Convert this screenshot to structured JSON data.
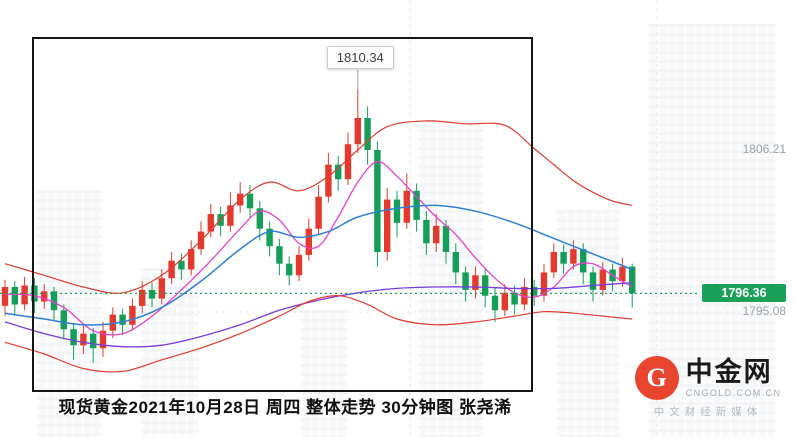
{
  "page": {
    "caption": "现货黄金2021年10月28日 周四  整体走势  30分钟图  张尧浠"
  },
  "branding": {
    "site_name": "中金网",
    "site_domain": "CNGOLD.COM.CN",
    "tagline": "中文财经新媒体",
    "logo_letter": "G",
    "logo_color": "#e8442e"
  },
  "chart_data": {
    "type": "candlestick",
    "title": "现货黄金 2021年10月28日 周四 30分钟图",
    "ylim": [
      1786.5,
      1816.5
    ],
    "grid": false,
    "legend": false,
    "colors": {
      "up": "#e23b2e",
      "down": "#149e58",
      "current": "#1ba157",
      "band": "#e23b2e",
      "ma_fast": "#e840ce",
      "ma_mid": "#2f7fd6",
      "ma_slow": "#7a3bdc"
    },
    "annotations": {
      "peak_label": "1810.34",
      "peak_index": 36,
      "current_price": "1796.36",
      "current_price_value": 1796.36,
      "axis_labels_right": [
        {
          "text": "1806.21",
          "price": 1806.21
        },
        {
          "text": "1795.08",
          "price": 1795.08
        }
      ]
    },
    "candles": [
      [
        1795.5,
        1797.3,
        1794.8,
        1796.8
      ],
      [
        1796.8,
        1797.2,
        1794.9,
        1795.6
      ],
      [
        1795.6,
        1797.5,
        1795.2,
        1796.9
      ],
      [
        1796.9,
        1797.4,
        1795.0,
        1795.8
      ],
      [
        1795.8,
        1797.0,
        1795.3,
        1796.5
      ],
      [
        1796.5,
        1796.8,
        1794.5,
        1795.2
      ],
      [
        1795.2,
        1795.6,
        1793.2,
        1793.9
      ],
      [
        1793.9,
        1794.3,
        1791.8,
        1792.8
      ],
      [
        1792.8,
        1794.2,
        1792.2,
        1793.6
      ],
      [
        1793.6,
        1794.0,
        1791.6,
        1792.6
      ],
      [
        1792.6,
        1794.4,
        1792.0,
        1793.8
      ],
      [
        1793.8,
        1795.4,
        1793.3,
        1794.9
      ],
      [
        1794.9,
        1795.3,
        1793.5,
        1794.2
      ],
      [
        1794.2,
        1796.0,
        1793.8,
        1795.5
      ],
      [
        1795.5,
        1797.2,
        1795.0,
        1796.6
      ],
      [
        1796.6,
        1797.1,
        1795.4,
        1796.0
      ],
      [
        1796.0,
        1798.0,
        1795.6,
        1797.4
      ],
      [
        1797.4,
        1799.2,
        1797.0,
        1798.6
      ],
      [
        1798.6,
        1799.1,
        1797.3,
        1798.0
      ],
      [
        1798.0,
        1800.0,
        1797.6,
        1799.4
      ],
      [
        1799.4,
        1801.3,
        1799.0,
        1800.6
      ],
      [
        1800.6,
        1802.5,
        1800.2,
        1801.8
      ],
      [
        1801.8,
        1802.3,
        1800.3,
        1801.0
      ],
      [
        1801.0,
        1803.3,
        1800.6,
        1802.4
      ],
      [
        1802.4,
        1804.0,
        1801.9,
        1803.2
      ],
      [
        1803.2,
        1803.8,
        1801.5,
        1802.2
      ],
      [
        1802.2,
        1802.7,
        1800.0,
        1800.8
      ],
      [
        1800.8,
        1801.3,
        1798.9,
        1799.6
      ],
      [
        1799.6,
        1800.1,
        1797.6,
        1798.4
      ],
      [
        1798.4,
        1798.9,
        1796.9,
        1797.6
      ],
      [
        1797.6,
        1799.6,
        1797.2,
        1799.0
      ],
      [
        1799.0,
        1801.5,
        1798.6,
        1800.8
      ],
      [
        1800.8,
        1803.8,
        1800.4,
        1803.0
      ],
      [
        1803.0,
        1806.0,
        1802.6,
        1805.2
      ],
      [
        1805.2,
        1805.8,
        1803.4,
        1804.2
      ],
      [
        1804.2,
        1807.4,
        1803.8,
        1806.6
      ],
      [
        1806.6,
        1810.34,
        1806.0,
        1808.4
      ],
      [
        1808.4,
        1809.2,
        1805.2,
        1806.2
      ],
      [
        1806.2,
        1806.8,
        1798.2,
        1799.2
      ],
      [
        1799.2,
        1803.6,
        1798.6,
        1802.8
      ],
      [
        1802.8,
        1803.4,
        1800.2,
        1801.2
      ],
      [
        1801.2,
        1804.6,
        1800.8,
        1803.4
      ],
      [
        1803.4,
        1803.9,
        1800.6,
        1801.4
      ],
      [
        1801.4,
        1802.0,
        1799.0,
        1799.8
      ],
      [
        1799.8,
        1801.8,
        1799.2,
        1801.0
      ],
      [
        1801.0,
        1801.4,
        1798.4,
        1799.2
      ],
      [
        1799.2,
        1799.8,
        1797.0,
        1797.8
      ],
      [
        1797.8,
        1798.2,
        1795.8,
        1796.6
      ],
      [
        1796.6,
        1798.2,
        1796.0,
        1797.6
      ],
      [
        1797.6,
        1798.0,
        1795.4,
        1796.2
      ],
      [
        1796.2,
        1796.8,
        1794.4,
        1795.2
      ],
      [
        1795.2,
        1797.0,
        1794.8,
        1796.4
      ],
      [
        1796.4,
        1796.9,
        1794.9,
        1795.6
      ],
      [
        1795.6,
        1797.4,
        1795.2,
        1796.8
      ],
      [
        1796.8,
        1797.3,
        1795.5,
        1796.2
      ],
      [
        1796.2,
        1798.4,
        1795.8,
        1797.8
      ],
      [
        1797.8,
        1799.8,
        1797.4,
        1799.2
      ],
      [
        1799.2,
        1799.7,
        1797.7,
        1798.4
      ],
      [
        1798.4,
        1800.0,
        1798.0,
        1799.4
      ],
      [
        1799.4,
        1799.8,
        1797.0,
        1797.8
      ],
      [
        1797.8,
        1798.2,
        1795.8,
        1796.6
      ],
      [
        1796.6,
        1798.5,
        1796.2,
        1798.0
      ],
      [
        1798.0,
        1798.4,
        1796.5,
        1797.2
      ],
      [
        1797.2,
        1798.8,
        1796.8,
        1798.2
      ],
      [
        1798.2,
        1798.4,
        1795.4,
        1796.36
      ]
    ],
    "overlays": [
      {
        "name": "MA-fast",
        "color": "#e840ce",
        "width": 1.3,
        "points": [
          [
            0,
            1796.3
          ],
          [
            3,
            1796.2
          ],
          [
            6,
            1795.4
          ],
          [
            9,
            1793.8
          ],
          [
            12,
            1793.6
          ],
          [
            15,
            1794.8
          ],
          [
            18,
            1796.6
          ],
          [
            21,
            1798.6
          ],
          [
            24,
            1800.8
          ],
          [
            26,
            1802.0
          ],
          [
            28,
            1801.4
          ],
          [
            30,
            1799.8
          ],
          [
            32,
            1799.6
          ],
          [
            34,
            1801.6
          ],
          [
            36,
            1804.0
          ],
          [
            38,
            1805.4
          ],
          [
            40,
            1804.4
          ],
          [
            42,
            1803.0
          ],
          [
            44,
            1801.6
          ],
          [
            46,
            1800.4
          ],
          [
            48,
            1798.8
          ],
          [
            50,
            1797.4
          ],
          [
            52,
            1796.4
          ],
          [
            54,
            1796.1
          ],
          [
            56,
            1796.8
          ],
          [
            58,
            1798.2
          ],
          [
            60,
            1798.4
          ],
          [
            62,
            1797.6
          ],
          [
            64,
            1796.8
          ]
        ]
      },
      {
        "name": "MA-mid",
        "color": "#2f7fd6",
        "width": 1.5,
        "points": [
          [
            0,
            1795.0
          ],
          [
            4,
            1794.6
          ],
          [
            8,
            1794.2
          ],
          [
            12,
            1794.4
          ],
          [
            16,
            1795.4
          ],
          [
            20,
            1797.2
          ],
          [
            24,
            1799.4
          ],
          [
            27,
            1800.6
          ],
          [
            30,
            1800.2
          ],
          [
            33,
            1800.6
          ],
          [
            36,
            1801.6
          ],
          [
            40,
            1802.2
          ],
          [
            44,
            1802.4
          ],
          [
            48,
            1802.0
          ],
          [
            52,
            1801.2
          ],
          [
            55,
            1800.4
          ],
          [
            58,
            1799.6
          ],
          [
            61,
            1798.8
          ],
          [
            64,
            1798.0
          ]
        ]
      },
      {
        "name": "MA-slow",
        "color": "#7a3bdc",
        "width": 1.3,
        "points": [
          [
            0,
            1794.4
          ],
          [
            4,
            1793.6
          ],
          [
            8,
            1793.0
          ],
          [
            12,
            1792.7
          ],
          [
            16,
            1792.8
          ],
          [
            20,
            1793.4
          ],
          [
            24,
            1794.2
          ],
          [
            28,
            1795.2
          ],
          [
            32,
            1795.9
          ],
          [
            36,
            1796.4
          ],
          [
            40,
            1796.7
          ],
          [
            44,
            1796.8
          ],
          [
            48,
            1796.8
          ],
          [
            52,
            1796.7
          ],
          [
            56,
            1796.7
          ],
          [
            60,
            1796.9
          ],
          [
            64,
            1797.1
          ]
        ]
      },
      {
        "name": "BOLL-upper",
        "color": "#e23b2e",
        "width": 1.2,
        "points": [
          [
            0,
            1798.4
          ],
          [
            4,
            1797.6
          ],
          [
            8,
            1796.8
          ],
          [
            12,
            1796.4
          ],
          [
            16,
            1797.6
          ],
          [
            20,
            1800.0
          ],
          [
            24,
            1802.8
          ],
          [
            27,
            1804.0
          ],
          [
            30,
            1803.4
          ],
          [
            33,
            1804.4
          ],
          [
            36,
            1806.2
          ],
          [
            39,
            1807.8
          ],
          [
            43,
            1808.2
          ],
          [
            47,
            1808.0
          ],
          [
            51,
            1807.9
          ],
          [
            54,
            1806.3
          ],
          [
            56,
            1805.2
          ],
          [
            58,
            1804.1
          ],
          [
            60,
            1803.3
          ],
          [
            62,
            1802.7
          ],
          [
            64,
            1802.4
          ]
        ]
      },
      {
        "name": "BOLL-lower",
        "color": "#e23b2e",
        "width": 1.2,
        "points": [
          [
            0,
            1793.0
          ],
          [
            4,
            1792.2
          ],
          [
            8,
            1791.2
          ],
          [
            12,
            1791.0
          ],
          [
            16,
            1791.8
          ],
          [
            20,
            1792.6
          ],
          [
            24,
            1793.6
          ],
          [
            28,
            1794.8
          ],
          [
            31,
            1795.8
          ],
          [
            34,
            1796.2
          ],
          [
            37,
            1795.6
          ],
          [
            40,
            1794.6
          ],
          [
            44,
            1794.2
          ],
          [
            48,
            1794.4
          ],
          [
            52,
            1794.8
          ],
          [
            55,
            1795.1
          ],
          [
            58,
            1795.0
          ],
          [
            61,
            1794.8
          ],
          [
            64,
            1794.6
          ]
        ]
      }
    ]
  }
}
